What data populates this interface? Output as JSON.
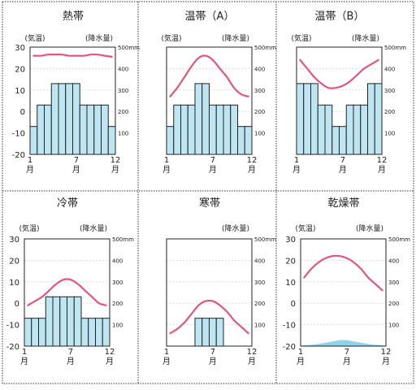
{
  "chart_data": [
    {
      "type": "bar",
      "title": "熱帯",
      "left_axis_label": "(気温)",
      "right_axis_label": "(降水量)",
      "x_tick_labels": [
        {
          "m": 1,
          "label": "1\n月"
        },
        {
          "m": 7,
          "label": "7\n月"
        },
        {
          "m": 12,
          "label": "12\n月"
        }
      ],
      "y_ticks": [
        -20,
        -10,
        0,
        10,
        20,
        30
      ],
      "y2_ticks": [
        "",
        "100",
        "200",
        "300",
        "400",
        "500mm"
      ],
      "ylim": [
        -20,
        30
      ],
      "y2lim": [
        0,
        500
      ],
      "categories": [
        1,
        2,
        3,
        4,
        5,
        6,
        7,
        8,
        9,
        10,
        11,
        12
      ],
      "series": [
        {
          "kind": "line",
          "axis": "temperature",
          "color": "#e0567e",
          "values": [
            26,
            26,
            26.5,
            26.5,
            26.5,
            26,
            26,
            26,
            26.5,
            26.5,
            26,
            25.5
          ]
        },
        {
          "kind": "bar",
          "axis": "precipitation",
          "color": "#bde6f2",
          "values": [
            130,
            230,
            230,
            330,
            330,
            330,
            330,
            230,
            230,
            230,
            230,
            130
          ]
        }
      ]
    },
    {
      "type": "bar",
      "title": "温帯（A）",
      "left_axis_label": "(気温)",
      "right_axis_label": "(降水量)",
      "x_tick_labels": [
        {
          "m": 1,
          "label": "1\n月"
        },
        {
          "m": 7,
          "label": "7\n月"
        },
        {
          "m": 12,
          "label": "12\n月"
        }
      ],
      "y_ticks": [],
      "y2_ticks": [
        "",
        "100",
        "200",
        "300",
        "400",
        "500mm"
      ],
      "ylim": [
        -20,
        30
      ],
      "y2lim": [
        0,
        500
      ],
      "categories": [
        1,
        2,
        3,
        4,
        5,
        6,
        7,
        8,
        9,
        10,
        11,
        12
      ],
      "series": [
        {
          "kind": "line",
          "axis": "temperature",
          "color": "#e0567e",
          "values": [
            7,
            11,
            16,
            21,
            25,
            26,
            24,
            20,
            16,
            11,
            8,
            7
          ]
        },
        {
          "kind": "bar",
          "axis": "precipitation",
          "color": "#bde6f2",
          "values": [
            130,
            230,
            230,
            230,
            330,
            330,
            230,
            230,
            230,
            230,
            130,
            130
          ]
        }
      ]
    },
    {
      "type": "bar",
      "title": "温帯（B）",
      "left_axis_label": "(気温)",
      "right_axis_label": "(降水量)",
      "x_tick_labels": [
        {
          "m": 1,
          "label": "1\n月"
        },
        {
          "m": 7,
          "label": "7\n月"
        },
        {
          "m": 12,
          "label": "12\n月"
        }
      ],
      "y_ticks": [],
      "y2_ticks": [
        "",
        "100",
        "200",
        "300",
        "400",
        "500mm"
      ],
      "ylim": [
        -20,
        30
      ],
      "y2lim": [
        0,
        500
      ],
      "categories": [
        1,
        2,
        3,
        4,
        5,
        6,
        7,
        8,
        9,
        10,
        11,
        12
      ],
      "series": [
        {
          "kind": "line",
          "axis": "temperature",
          "color": "#e0567e",
          "values": [
            24,
            20,
            16,
            13,
            11,
            11,
            12,
            14,
            17,
            20,
            22,
            24
          ]
        },
        {
          "kind": "bar",
          "axis": "precipitation",
          "color": "#bde6f2",
          "values": [
            330,
            330,
            330,
            230,
            230,
            130,
            130,
            230,
            230,
            230,
            330,
            330
          ]
        }
      ]
    },
    {
      "type": "bar",
      "title": "冷帯",
      "left_axis_label": "(気温)",
      "right_axis_label": "(降水量)",
      "x_tick_labels": [
        {
          "m": 1,
          "label": "1\n月"
        },
        {
          "m": 7,
          "label": "7\n月"
        },
        {
          "m": 12,
          "label": "12\n月"
        }
      ],
      "y_ticks": [
        -20,
        -10,
        0,
        10,
        20,
        30
      ],
      "y2_ticks": [
        "",
        "100",
        "200",
        "300",
        "400",
        "500mm"
      ],
      "ylim": [
        -20,
        30
      ],
      "y2lim": [
        0,
        500
      ],
      "categories": [
        1,
        2,
        3,
        4,
        5,
        6,
        7,
        8,
        9,
        10,
        11,
        12
      ],
      "series": [
        {
          "kind": "line",
          "axis": "temperature",
          "color": "#e0567e",
          "values": [
            -1,
            1,
            3,
            6,
            9,
            11,
            11,
            9,
            6,
            3,
            0,
            -1
          ]
        },
        {
          "kind": "bar",
          "axis": "precipitation",
          "color": "#bde6f2",
          "values": [
            130,
            130,
            130,
            230,
            230,
            230,
            230,
            230,
            130,
            130,
            130,
            130
          ]
        }
      ]
    },
    {
      "type": "bar",
      "title": "寒帯",
      "left_axis_label": "",
      "right_axis_label": "(降水量)",
      "x_tick_labels": [
        {
          "m": 1,
          "label": "1\n月"
        },
        {
          "m": 7,
          "label": "7\n月"
        },
        {
          "m": 12,
          "label": "12\n月"
        }
      ],
      "y_ticks": [],
      "y2_ticks": [
        "",
        "100",
        "200",
        "300",
        "400",
        "500mm"
      ],
      "ylim": [
        -20,
        30
      ],
      "y2lim": [
        0,
        500
      ],
      "categories": [
        1,
        2,
        3,
        4,
        5,
        6,
        7,
        8,
        9,
        10,
        11,
        12
      ],
      "series": [
        {
          "kind": "line",
          "axis": "temperature",
          "color": "#e0567e",
          "values": [
            -14,
            -12,
            -9,
            -5,
            -1,
            1,
            1,
            -1,
            -4,
            -8,
            -11,
            -14
          ]
        },
        {
          "kind": "bar",
          "axis": "precipitation",
          "color": "#bde6f2",
          "values": [
            0,
            0,
            0,
            0,
            130,
            130,
            130,
            130,
            0,
            0,
            0,
            0
          ]
        }
      ]
    },
    {
      "type": "bar",
      "title": "乾燥帯",
      "left_axis_label": "(気温)",
      "right_axis_label": "(降水量)",
      "x_tick_labels": [
        {
          "m": 1,
          "label": "1\n月"
        },
        {
          "m": 7,
          "label": "7\n月"
        },
        {
          "m": 12,
          "label": "12\n月"
        }
      ],
      "y_ticks": [
        -20,
        -10,
        0,
        10,
        20,
        30
      ],
      "y2_ticks": [
        "",
        "100",
        "200",
        "300",
        "400",
        "500mm"
      ],
      "ylim": [
        -20,
        30
      ],
      "y2lim": [
        0,
        500
      ],
      "categories": [
        1,
        2,
        3,
        4,
        5,
        6,
        7,
        8,
        9,
        10,
        11,
        12
      ],
      "series": [
        {
          "kind": "line",
          "axis": "temperature",
          "color": "#e0567e",
          "values": [
            12,
            16,
            19,
            21,
            22,
            22,
            21,
            19,
            16,
            12,
            9,
            6
          ]
        },
        {
          "kind": "area",
          "axis": "precipitation",
          "color": "#8fd3ea",
          "values": [
            4,
            6,
            10,
            16,
            22,
            28,
            28,
            22,
            16,
            10,
            6,
            4
          ]
        }
      ]
    }
  ]
}
